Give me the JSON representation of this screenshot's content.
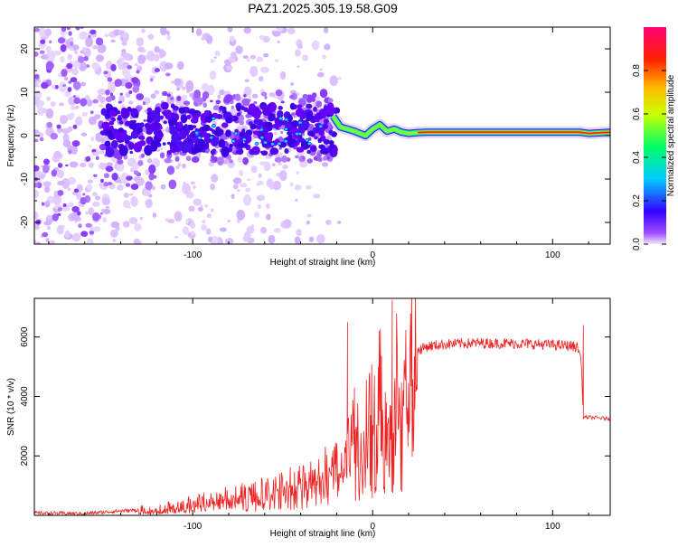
{
  "chart_data": [
    {
      "type": "heatmap",
      "title": "PAZ1.2025.305.19.58.G09",
      "xlabel": "Height of straight line (km)",
      "ylabel": "Frequency (Hz)",
      "xlim": [
        -188,
        132
      ],
      "ylim": [
        -25,
        25
      ],
      "xticks": [
        -100,
        0,
        100
      ],
      "yticks": [
        -20,
        -10,
        0,
        10,
        20
      ],
      "colorbar": {
        "label": "Normalized spectral amplitude",
        "range": [
          0.0,
          1.0
        ],
        "ticks": [
          0.0,
          0.2,
          0.4,
          0.6,
          0.8
        ],
        "tick_labels": [
          "0.0",
          "0.2",
          "0.4",
          "0.6",
          "0.8"
        ]
      },
      "signal_trace": {
        "x": [
          -22,
          -18,
          -14,
          -10,
          -7,
          -4,
          0,
          4,
          8,
          12,
          16,
          20,
          25,
          30,
          40,
          60,
          85,
          95,
          110,
          115,
          120,
          132
        ],
        "y": [
          4.5,
          2.0,
          1.5,
          1.0,
          0.5,
          0.0,
          1.5,
          2.5,
          1.0,
          1.5,
          0.8,
          0.5,
          0.7,
          0.8,
          0.8,
          0.8,
          0.8,
          0.8,
          0.8,
          0.8,
          0.5,
          0.8
        ]
      }
    },
    {
      "type": "line",
      "xlabel": "Height of straight line (km)",
      "ylabel": "SNR (10 * v/v)",
      "xlim": [
        -188,
        132
      ],
      "ylim": [
        0,
        7300
      ],
      "xticks": [
        -100,
        0,
        100
      ],
      "yticks": [
        2000,
        4000,
        6000
      ],
      "line_color": "#ee2222",
      "series": [
        {
          "name": "SNR",
          "x": [
            -188,
            -160,
            -140,
            -120,
            -100,
            -80,
            -60,
            -40,
            -30,
            -20,
            -15,
            -10,
            -5,
            0,
            5,
            10,
            15,
            20,
            25,
            30,
            40,
            60,
            80,
            100,
            110,
            114,
            116,
            117,
            120,
            125,
            132
          ],
          "y": [
            80,
            60,
            150,
            200,
            400,
            600,
            800,
            1100,
            1400,
            1800,
            2400,
            2900,
            3400,
            3800,
            4200,
            4600,
            5000,
            5300,
            5550,
            5680,
            5760,
            5800,
            5780,
            5740,
            5700,
            5650,
            5200,
            3300,
            3300,
            3280,
            3250
          ],
          "spikes": [
            [
              -14,
              6500
            ],
            [
              -10,
              4300
            ],
            [
              11,
              7250
            ],
            [
              11,
              1800
            ],
            [
              5,
              2200
            ],
            [
              117,
              6400
            ]
          ]
        }
      ]
    }
  ]
}
